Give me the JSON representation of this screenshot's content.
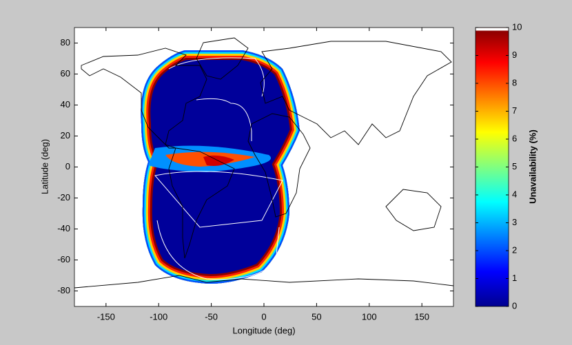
{
  "chart_data": {
    "type": "map",
    "xlabel": "Longitude (deg)",
    "ylabel": "Latitude (deg)",
    "xlim": [
      -180,
      180
    ],
    "xticks": [
      -150,
      -100,
      -50,
      0,
      50,
      100,
      150
    ],
    "ylim": [
      -90,
      90
    ],
    "yticks": [
      -80,
      -60,
      -40,
      -20,
      0,
      20,
      40,
      60,
      80
    ],
    "colorbar": {
      "label": "Unavailability (%)",
      "lim": [
        0,
        10
      ],
      "ticks": [
        0,
        1,
        2,
        3,
        4,
        5,
        6,
        7,
        8,
        9,
        10
      ],
      "colormap": [
        "#00008f",
        "#0000ff",
        "#0080ff",
        "#00ffff",
        "#80ff80",
        "#ffff00",
        "#ff8000",
        "#ff0000",
        "#800000"
      ]
    }
  }
}
